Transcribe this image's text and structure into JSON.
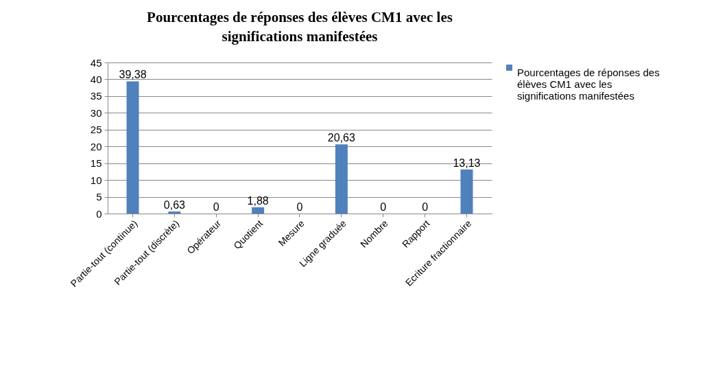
{
  "chart_data": {
    "type": "bar",
    "title": "Pourcentages de réponses des élèves CM1 avec les significations manifestées",
    "categories": [
      "Partie-tout (continue)",
      "Partie-tout (discrète)",
      "Opérateur",
      "Quotient",
      "Mesure",
      "Ligne graduée",
      "Nombre",
      "Rapport",
      "Ecriture fractionnaire"
    ],
    "series": [
      {
        "name": "Pourcentages de réponses des élèves CM1 avec les significations manifestées",
        "color": "#4f81bd",
        "values": [
          39.38,
          0.63,
          0,
          1.88,
          0,
          20.63,
          0,
          0,
          13.13
        ],
        "value_labels": [
          "39,38",
          "0,63",
          "0",
          "1,88",
          "0",
          "20,63",
          "0",
          "0",
          "13,13"
        ]
      }
    ],
    "ylim": [
      0,
      45
    ],
    "yticks": [
      0,
      5,
      10,
      15,
      20,
      25,
      30,
      35,
      40,
      45
    ],
    "grid": "y",
    "legend": "right"
  }
}
